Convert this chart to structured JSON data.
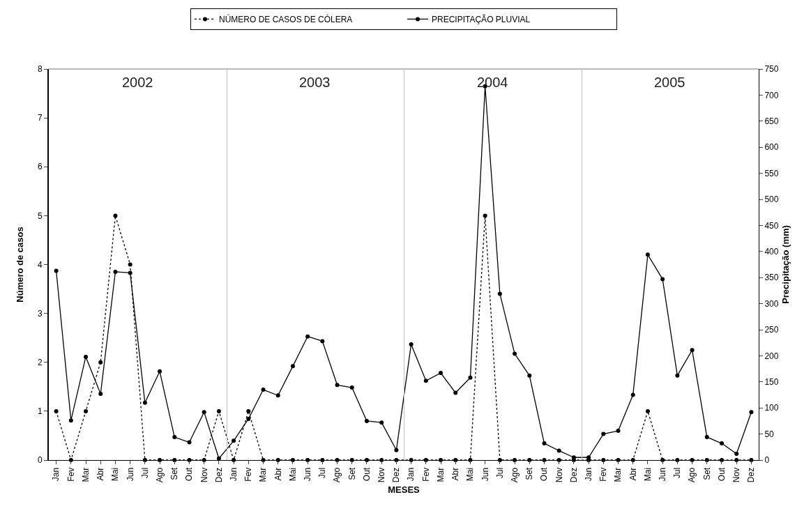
{
  "chart_data": {
    "type": "line",
    "xlabel": "MESES",
    "ylabel": "Número de casos",
    "y2label": "Precipitação (mm)",
    "categories": [
      "Jan",
      "Fev",
      "Mar",
      "Abr",
      "Mai",
      "Jun",
      "Jul",
      "Ago",
      "Set",
      "Out",
      "Nov",
      "Dez",
      "Jan",
      "Fev",
      "Mar",
      "Abr",
      "Mai",
      "Jun",
      "Jul",
      "Ago",
      "Set",
      "Out",
      "Nov",
      "Dez",
      "Jan",
      "Fev",
      "Mar",
      "Abr",
      "Mai",
      "Jun",
      "Jul",
      "Ago",
      "Set",
      "Out",
      "Nov",
      "Dez",
      "Jan",
      "Fev",
      "Mar",
      "Abr",
      "Mai",
      "Jun",
      "Jul",
      "Ago",
      "Set",
      "Out",
      "Nov",
      "Dez"
    ],
    "series": [
      {
        "name": "NÚMERO DE CASOS DE CÓLERA",
        "color": "#000000",
        "line_style": "dotted",
        "values": [
          1,
          0,
          1,
          2,
          5,
          4,
          0,
          0,
          0,
          0,
          0,
          1,
          0,
          1,
          0,
          0,
          0,
          0,
          0,
          0,
          0,
          0,
          0,
          0,
          0,
          0,
          0,
          0,
          0,
          5,
          0,
          0,
          0,
          0,
          0,
          0,
          0,
          0,
          0,
          0,
          1,
          0,
          0,
          0,
          0,
          0,
          0,
          0
        ]
      },
      {
        "name": "PRECIPITAÇÃO PLUVIAL",
        "color": "#000000",
        "line_style": "solid",
        "axis": "y2",
        "values": [
          363,
          76,
          198,
          127,
          361,
          359,
          110,
          170,
          44,
          34,
          92,
          3,
          37,
          79,
          135,
          124,
          180,
          237,
          228,
          144,
          139,
          75,
          72,
          19,
          222,
          152,
          167,
          129,
          158,
          717,
          319,
          204,
          162,
          32,
          18,
          5,
          5,
          50,
          56,
          125,
          394,
          347,
          162,
          211,
          44,
          32,
          12,
          92
        ]
      }
    ],
    "annotations": [
      "2002",
      "2003",
      "2004",
      "2005"
    ],
    "ylim": [
      0,
      8
    ],
    "yticks": [
      0,
      1,
      2,
      3,
      4,
      5,
      6,
      7,
      8
    ],
    "y2lim": [
      0,
      750
    ],
    "y2ticks": [
      0,
      50,
      100,
      150,
      200,
      250,
      300,
      350,
      400,
      450,
      500,
      550,
      600,
      650,
      700,
      750
    ],
    "marker": "circle",
    "grid": false,
    "legend": "top"
  }
}
